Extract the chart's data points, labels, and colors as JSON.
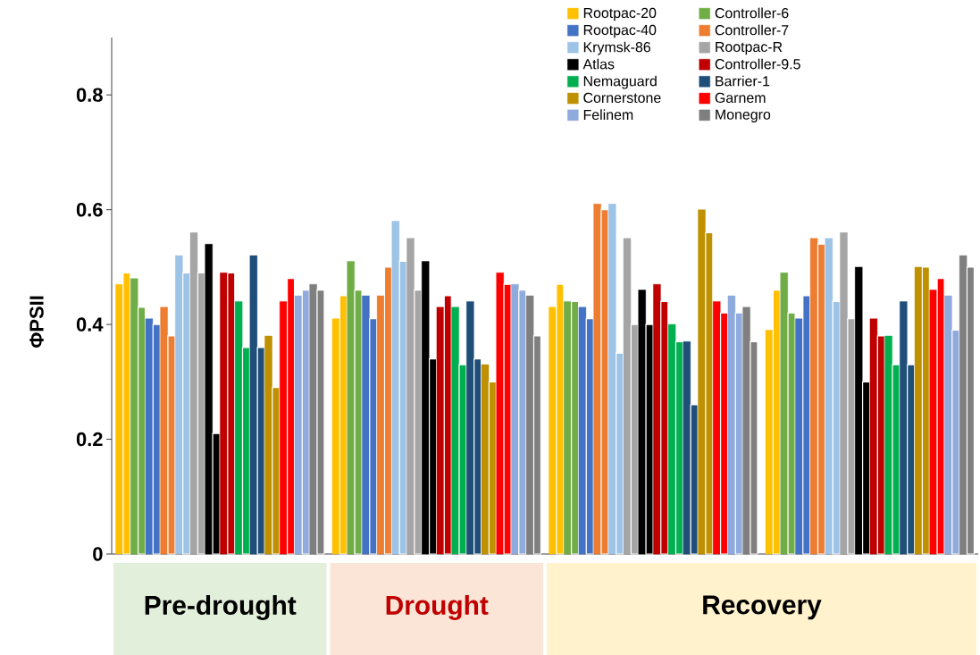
{
  "chart_data": {
    "type": "bar",
    "ylabel": "ΦPSII",
    "categories": [
      null,
      null,
      null,
      null
    ],
    "ylim": [
      0,
      0.9
    ],
    "yticks": [
      0,
      0.2,
      0.4,
      0.6,
      0.8
    ],
    "legend": "top right",
    "grid": false,
    "series": [
      {
        "name": "Rootpac-20",
        "color": "#ffc000",
        "values": [
          0.47,
          0.41,
          0.43,
          0.39
        ]
      },
      {
        "color": "#ffc000",
        "values": [
          0.49,
          0.45,
          0.47,
          0.46
        ]
      },
      {
        "name": "Controller-6",
        "color": "#70ad47",
        "values": [
          0.48,
          0.51,
          0.44,
          0.49
        ]
      },
      {
        "color": "#70ad47",
        "values": [
          0.43,
          0.46,
          0.44,
          0.42
        ]
      },
      {
        "name": "Rootpac-40",
        "color": "#4472c4",
        "values": [
          0.41,
          0.45,
          0.43,
          0.41
        ]
      },
      {
        "color": "#4472c4",
        "values": [
          0.4,
          0.41,
          0.41,
          0.45
        ]
      },
      {
        "name": "Controller-7",
        "color": "#ed7d31",
        "values": [
          0.43,
          0.45,
          0.61,
          0.55
        ]
      },
      {
        "color": "#ed7d31",
        "values": [
          0.38,
          0.5,
          0.6,
          0.54
        ]
      },
      {
        "name": "Krymsk-86",
        "color": "#9dc3e6",
        "values": [
          0.52,
          0.58,
          0.61,
          0.55
        ]
      },
      {
        "color": "#9dc3e6",
        "values": [
          0.49,
          0.51,
          0.35,
          0.44
        ]
      },
      {
        "name": "Rootpac-R",
        "color": "#a5a5a5",
        "values": [
          0.56,
          0.55,
          0.55,
          0.56
        ]
      },
      {
        "color": "#a5a5a5",
        "values": [
          0.49,
          0.46,
          0.4,
          0.41
        ]
      },
      {
        "name": "Atlas",
        "color": "#000000",
        "values": [
          0.54,
          0.51,
          0.46,
          0.5
        ]
      },
      {
        "color": "#000000",
        "values": [
          0.21,
          0.34,
          0.4,
          0.3
        ]
      },
      {
        "name": "Controller-9.5",
        "color": "#c00000",
        "values": [
          0.49,
          0.43,
          0.47,
          0.41
        ]
      },
      {
        "color": "#c00000",
        "values": [
          0.49,
          0.45,
          0.44,
          0.38
        ]
      },
      {
        "name": "Nemaguard",
        "color": "#00b050",
        "values": [
          0.44,
          0.43,
          0.4,
          0.38
        ]
      },
      {
        "color": "#00b050",
        "values": [
          0.36,
          0.33,
          0.37,
          0.33
        ]
      },
      {
        "name": "Barrier-1",
        "color": "#1f4e79",
        "values": [
          0.52,
          0.44,
          0.37,
          0.44
        ]
      },
      {
        "color": "#1f4e79",
        "values": [
          0.36,
          0.34,
          0.26,
          0.33
        ]
      },
      {
        "name": "Cornerstone",
        "color": "#bf9000",
        "values": [
          0.38,
          0.33,
          0.6,
          0.5
        ]
      },
      {
        "color": "#bf9000",
        "values": [
          0.29,
          0.3,
          0.56,
          0.5
        ]
      },
      {
        "name": "Garnem",
        "color": "#ff0000",
        "values": [
          0.44,
          0.49,
          0.44,
          0.46
        ]
      },
      {
        "color": "#ff0000",
        "values": [
          0.48,
          0.47,
          0.42,
          0.48
        ]
      },
      {
        "name": "Felinem",
        "color": "#8faadc",
        "values": [
          0.45,
          0.47,
          0.45,
          0.45
        ]
      },
      {
        "color": "#8faadc",
        "values": [
          0.46,
          0.46,
          0.42,
          0.39
        ]
      },
      {
        "name": "Monegro",
        "color": "#7f7f7f",
        "values": [
          0.47,
          0.45,
          0.43,
          0.52
        ]
      },
      {
        "color": "#7f7f7f",
        "values": [
          0.46,
          0.38,
          0.37,
          0.5
        ]
      }
    ],
    "annotations": [
      "Pre-drought",
      "Drought",
      "Recovery"
    ]
  }
}
